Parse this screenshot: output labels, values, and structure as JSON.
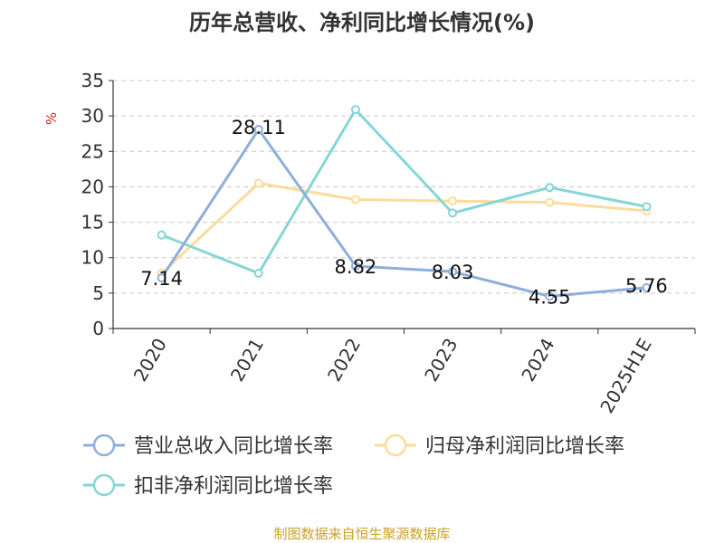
{
  "chart_data": {
    "type": "line",
    "title": "历年总营收、净利同比增长情况(%)",
    "ylabel": "%",
    "ylim": [
      0,
      35
    ],
    "yticks": [
      0,
      5,
      10,
      15,
      20,
      25,
      30,
      35
    ],
    "grid": true,
    "legend_position": "bottom",
    "categories": [
      "2020",
      "2021",
      "2022",
      "2023",
      "2024",
      "2025H1E"
    ],
    "series": [
      {
        "name": "营业总收入同比增长率",
        "color": "#8eaedb",
        "values": [
          7.14,
          28.11,
          8.82,
          8.03,
          4.55,
          5.76
        ],
        "labels": [
          "7.14",
          "28.11",
          "8.82",
          "8.03",
          "4.55",
          "5.76"
        ]
      },
      {
        "name": "归母净利润同比增长率",
        "color": "#fddc9b",
        "values": [
          7.8,
          20.5,
          18.2,
          18.0,
          17.8,
          16.6
        ]
      },
      {
        "name": "扣非净利润同比增长率",
        "color": "#86d6d6",
        "values": [
          13.2,
          7.8,
          30.9,
          16.3,
          19.9,
          17.2
        ]
      }
    ]
  },
  "source": "制图数据来自恒生聚源数据库"
}
